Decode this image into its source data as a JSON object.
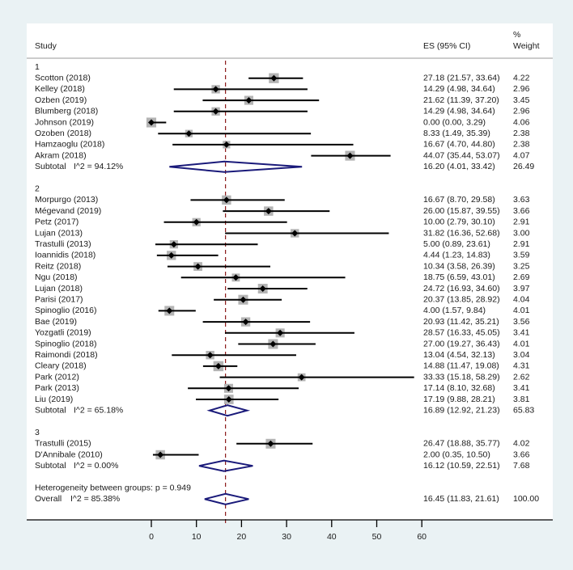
{
  "chart_data": {
    "type": "forest",
    "xlim": [
      0,
      60
    ],
    "xticks": [
      "0",
      "10",
      "20",
      "30",
      "40",
      "50",
      "60"
    ],
    "null_line": 16.45,
    "headers": {
      "study": "Study",
      "es": "ES (95% CI)",
      "weight_top": "%",
      "weight": "Weight"
    },
    "groups": [
      {
        "label": "1",
        "studies": [
          {
            "study": "Scotton (2018)",
            "es": 27.18,
            "lo": 21.57,
            "hi": 33.64,
            "ci_text": "27.18 (21.57, 33.64)",
            "weight": "4.22"
          },
          {
            "study": "Kelley (2018)",
            "es": 14.29,
            "lo": 4.98,
            "hi": 34.64,
            "ci_text": "14.29 (4.98, 34.64)",
            "weight": "2.96"
          },
          {
            "study": "Ozben (2019)",
            "es": 21.62,
            "lo": 11.39,
            "hi": 37.2,
            "ci_text": "21.62 (11.39, 37.20)",
            "weight": "3.45"
          },
          {
            "study": "Blumberg (2018)",
            "es": 14.29,
            "lo": 4.98,
            "hi": 34.64,
            "ci_text": "14.29 (4.98, 34.64)",
            "weight": "2.96"
          },
          {
            "study": "Johnson (2019)",
            "es": 0.0,
            "lo": 0.0,
            "hi": 3.29,
            "ci_text": "0.00 (0.00, 3.29)",
            "weight": "4.06"
          },
          {
            "study": "Ozoben (2018)",
            "es": 8.33,
            "lo": 1.49,
            "hi": 35.39,
            "ci_text": "8.33 (1.49, 35.39)",
            "weight": "2.38"
          },
          {
            "study": "Hamzaoglu (2018)",
            "es": 16.67,
            "lo": 4.7,
            "hi": 44.8,
            "ci_text": "16.67 (4.70, 44.80)",
            "weight": "2.38"
          },
          {
            "study": "Akram (2018)",
            "es": 44.07,
            "lo": 35.44,
            "hi": 53.07,
            "ci_text": "44.07 (35.44, 53.07)",
            "weight": "4.07"
          }
        ],
        "subtotal": {
          "label": "Subtotal",
          "i2": "I^2 = 94.12%",
          "es": 16.2,
          "lo": 4.01,
          "hi": 33.42,
          "ci_text": "16.20 (4.01, 33.42)",
          "weight": "26.49"
        }
      },
      {
        "label": "2",
        "studies": [
          {
            "study": "Morpurgo (2013)",
            "es": 16.67,
            "lo": 8.7,
            "hi": 29.58,
            "ci_text": "16.67 (8.70, 29.58)",
            "weight": "3.63"
          },
          {
            "study": "Mégevand (2019)",
            "es": 26.0,
            "lo": 15.87,
            "hi": 39.55,
            "ci_text": "26.00 (15.87, 39.55)",
            "weight": "3.66"
          },
          {
            "study": "Petz (2017)",
            "es": 10.0,
            "lo": 2.79,
            "hi": 30.1,
            "ci_text": "10.00 (2.79, 30.10)",
            "weight": "2.91"
          },
          {
            "study": "Lujan (2013)",
            "es": 31.82,
            "lo": 16.36,
            "hi": 52.68,
            "ci_text": "31.82 (16.36, 52.68)",
            "weight": "3.00"
          },
          {
            "study": "Trastulli (2013)",
            "es": 5.0,
            "lo": 0.89,
            "hi": 23.61,
            "ci_text": "5.00 (0.89, 23.61)",
            "weight": "2.91"
          },
          {
            "study": "Ioannidis (2018)",
            "es": 4.44,
            "lo": 1.23,
            "hi": 14.83,
            "ci_text": "4.44 (1.23, 14.83)",
            "weight": "3.59"
          },
          {
            "study": "Reitz (2018)",
            "es": 10.34,
            "lo": 3.58,
            "hi": 26.39,
            "ci_text": "10.34 (3.58, 26.39)",
            "weight": "3.25"
          },
          {
            "study": "Ngu (2018)",
            "es": 18.75,
            "lo": 6.59,
            "hi": 43.01,
            "ci_text": "18.75 (6.59, 43.01)",
            "weight": "2.69"
          },
          {
            "study": "Lujan (2018)",
            "es": 24.72,
            "lo": 16.93,
            "hi": 34.6,
            "ci_text": "24.72 (16.93, 34.60)",
            "weight": "3.97"
          },
          {
            "study": "Parisi (2017)",
            "es": 20.37,
            "lo": 13.85,
            "hi": 28.92,
            "ci_text": "20.37 (13.85, 28.92)",
            "weight": "4.04"
          },
          {
            "study": "Spinoglio (2016)",
            "es": 4.0,
            "lo": 1.57,
            "hi": 9.84,
            "ci_text": "4.00 (1.57, 9.84)",
            "weight": "4.01"
          },
          {
            "study": "Bae (2019)",
            "es": 20.93,
            "lo": 11.42,
            "hi": 35.21,
            "ci_text": "20.93 (11.42, 35.21)",
            "weight": "3.56"
          },
          {
            "study": "Yozgatli (2019)",
            "es": 28.57,
            "lo": 16.33,
            "hi": 45.05,
            "ci_text": "28.57 (16.33, 45.05)",
            "weight": "3.41"
          },
          {
            "study": "Spinoglio (2018)",
            "es": 27.0,
            "lo": 19.27,
            "hi": 36.43,
            "ci_text": "27.00 (19.27, 36.43)",
            "weight": "4.01"
          },
          {
            "study": "Raimondi (2018)",
            "es": 13.04,
            "lo": 4.54,
            "hi": 32.13,
            "ci_text": "13.04 (4.54, 32.13)",
            "weight": "3.04"
          },
          {
            "study": "Cleary (2018)",
            "es": 14.88,
            "lo": 11.47,
            "hi": 19.08,
            "ci_text": "14.88 (11.47, 19.08)",
            "weight": "4.31"
          },
          {
            "study": "Park (2012)",
            "es": 33.33,
            "lo": 15.18,
            "hi": 58.29,
            "ci_text": "33.33 (15.18, 58.29)",
            "weight": "2.62"
          },
          {
            "study": "Park (2013)",
            "es": 17.14,
            "lo": 8.1,
            "hi": 32.68,
            "ci_text": "17.14 (8.10, 32.68)",
            "weight": "3.41"
          },
          {
            "study": "Liu (2019)",
            "es": 17.19,
            "lo": 9.88,
            "hi": 28.21,
            "ci_text": "17.19 (9.88, 28.21)",
            "weight": "3.81"
          }
        ],
        "subtotal": {
          "label": "Subtotal",
          "i2": "I^2 = 65.18%",
          "es": 16.89,
          "lo": 12.92,
          "hi": 21.23,
          "ci_text": "16.89 (12.92, 21.23)",
          "weight": "65.83"
        }
      },
      {
        "label": "3",
        "studies": [
          {
            "study": "Trastulli (2015)",
            "es": 26.47,
            "lo": 18.88,
            "hi": 35.77,
            "ci_text": "26.47 (18.88, 35.77)",
            "weight": "4.02"
          },
          {
            "study": "D'Annibale (2010)",
            "es": 2.0,
            "lo": 0.35,
            "hi": 10.5,
            "ci_text": "2.00 (0.35, 10.50)",
            "weight": "3.66"
          }
        ],
        "subtotal": {
          "label": "Subtotal",
          "i2": "I^2 = 0.00%",
          "es": 16.12,
          "lo": 10.59,
          "hi": 22.51,
          "ci_text": "16.12 (10.59, 22.51)",
          "weight": "7.68"
        }
      }
    ],
    "heterogeneity": "Heterogeneity between groups: p = 0.949",
    "overall": {
      "label": "Overall",
      "i2": "I^2 = 85.38%",
      "es": 16.45,
      "lo": 11.83,
      "hi": 21.61,
      "ci_text": "16.45 (11.83, 21.61)",
      "weight": "100.00"
    },
    "colors": {
      "background": "#eaf2f4",
      "panel": "#ffffff",
      "diamond": "#1a1a7a",
      "null_line": "#8b1a1a",
      "box": "#b4b4b4",
      "marker": "#000000"
    }
  }
}
